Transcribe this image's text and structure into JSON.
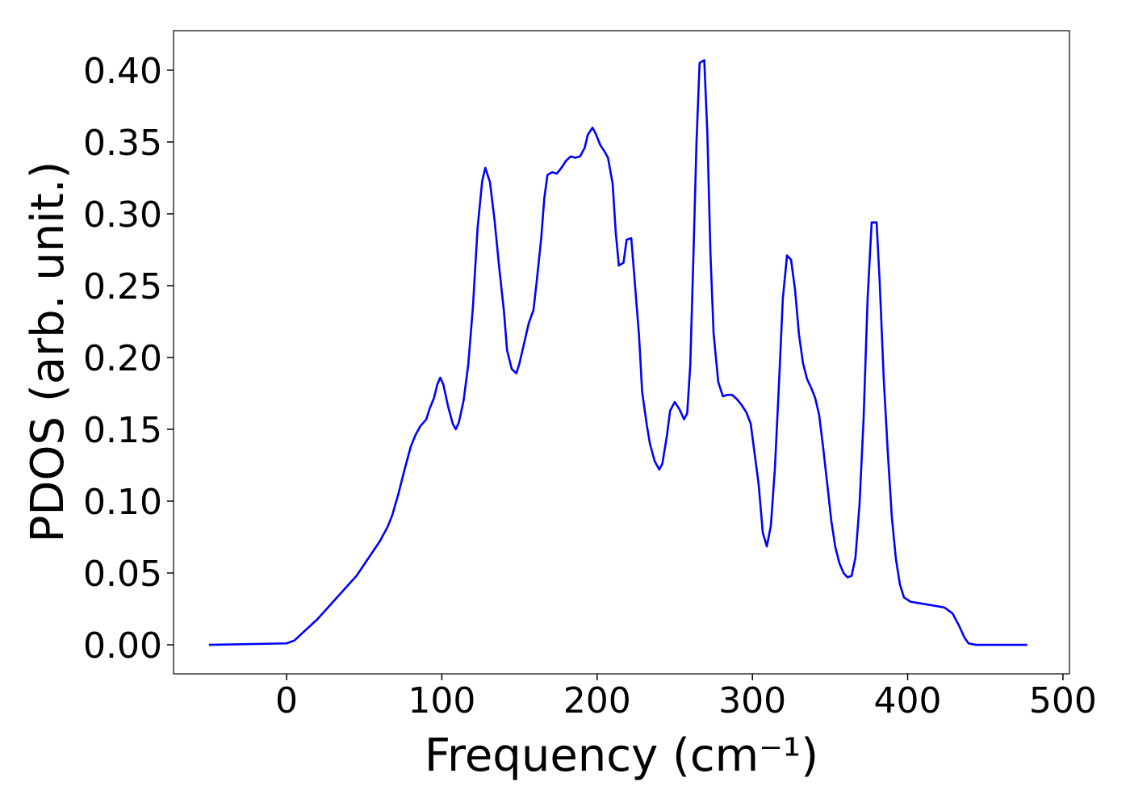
{
  "chart_data": {
    "type": "line",
    "xlabel": "Frequency (cm⁻¹)",
    "ylabel": "PDOS (arb. unit.)",
    "xlim": [
      -72.8,
      504.2
    ],
    "ylim": [
      -0.0202,
      0.4275
    ],
    "xticks": [
      0,
      100,
      200,
      300,
      400,
      500
    ],
    "yticks": [
      {
        "value": 0,
        "label": "0.00"
      },
      {
        "value": 0.05,
        "label": "0.05"
      },
      {
        "value": 0.1,
        "label": "0.10"
      },
      {
        "value": 0.15,
        "label": "0.15"
      },
      {
        "value": 0.2,
        "label": "0.20"
      },
      {
        "value": 0.25,
        "label": "0.25"
      },
      {
        "value": 0.3,
        "label": "0.30"
      },
      {
        "value": 0.35,
        "label": "0.35"
      },
      {
        "value": 0.4,
        "label": "0.40"
      }
    ],
    "x": [
      -50,
      0,
      5,
      10,
      20,
      30,
      40,
      45,
      50,
      55,
      60,
      65,
      68,
      72,
      76,
      80,
      83,
      86,
      90,
      92,
      95,
      97,
      99,
      101,
      104,
      107,
      109,
      111,
      114,
      117,
      120,
      123,
      126,
      128,
      131,
      134,
      137,
      140,
      142,
      145,
      148,
      150,
      153,
      156,
      159,
      161,
      164,
      166,
      168,
      171,
      174,
      177,
      180,
      183,
      186,
      189,
      192,
      194,
      197,
      199,
      202,
      205,
      207,
      210,
      212,
      214,
      217,
      219,
      222,
      224,
      227,
      229,
      232,
      234,
      237,
      240,
      242,
      245,
      247,
      250,
      253,
      256,
      258,
      260,
      262,
      264,
      266,
      269,
      271,
      273,
      275,
      278,
      281,
      284,
      287,
      290,
      293,
      296,
      298.9,
      304,
      306.7,
      309.3,
      311.9,
      314.5,
      317,
      319.6,
      322.3,
      324.9,
      327.5,
      330,
      332.6,
      335.2,
      337.8,
      340.4,
      343,
      345.6,
      348.2,
      350.8,
      353.4,
      356,
      358.7,
      361.2,
      363.9,
      366.4,
      369,
      371.6,
      374.2,
      376.8,
      380,
      382,
      384.6,
      387.2,
      389.8,
      392.4,
      395,
      397.6,
      401.8,
      413,
      423.6,
      428.8,
      433,
      436.6,
      439.2,
      444,
      477
    ],
    "series": [
      {
        "name": "PDOS",
        "color": "#0000ff",
        "values": [
          0,
          0.001,
          0.003,
          0.008,
          0.018,
          0.03,
          0.042,
          0.048,
          0.056,
          0.064,
          0.072,
          0.082,
          0.09,
          0.105,
          0.122,
          0.138,
          0.146,
          0.152,
          0.157,
          0.164,
          0.172,
          0.181,
          0.186,
          0.181,
          0.166,
          0.154,
          0.15,
          0.155,
          0.17,
          0.195,
          0.235,
          0.29,
          0.323,
          0.332,
          0.322,
          0.295,
          0.262,
          0.232,
          0.205,
          0.192,
          0.189,
          0.196,
          0.21,
          0.224,
          0.233,
          0.252,
          0.283,
          0.311,
          0.327,
          0.329,
          0.328,
          0.332,
          0.337,
          0.34,
          0.339,
          0.34,
          0.346,
          0.355,
          0.36,
          0.356,
          0.348,
          0.343,
          0.339,
          0.321,
          0.287,
          0.264,
          0.266,
          0.282,
          0.283,
          0.256,
          0.215,
          0.176,
          0.153,
          0.14,
          0.128,
          0.122,
          0.126,
          0.146,
          0.163,
          0.169,
          0.164,
          0.157,
          0.161,
          0.195,
          0.27,
          0.35,
          0.405,
          0.407,
          0.356,
          0.272,
          0.217,
          0.183,
          0.173,
          0.174,
          0.174,
          0.171,
          0.167,
          0.162,
          0.154,
          0.112,
          0.078,
          0.0685,
          0.083,
          0.123,
          0.179,
          0.241,
          0.271,
          0.268,
          0.247,
          0.216,
          0.196,
          0.185,
          0.179,
          0.172,
          0.16,
          0.137,
          0.112,
          0.0865,
          0.068,
          0.057,
          0.05,
          0.047,
          0.048,
          0.061,
          0.098,
          0.157,
          0.241,
          0.294,
          0.294,
          0.252,
          0.185,
          0.134,
          0.089,
          0.06,
          0.042,
          0.033,
          0.03,
          0.028,
          0.026,
          0.022,
          0.0135,
          0.005,
          0.001,
          0,
          0
        ]
      }
    ]
  }
}
